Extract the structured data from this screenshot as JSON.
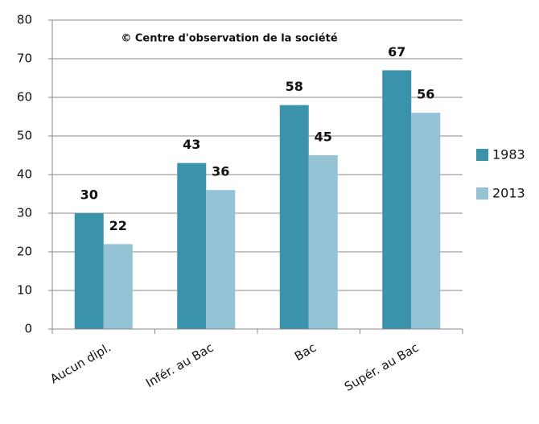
{
  "chart_data": {
    "type": "bar",
    "annotation": "© Centre d'observation de la société",
    "categories": [
      "Aucun dipl.",
      "Infér. au Bac",
      "Bac",
      "Supér. au Bac"
    ],
    "series": [
      {
        "name": "1983",
        "color": "#3a93ab",
        "values": [
          30,
          43,
          58,
          67
        ]
      },
      {
        "name": "2013",
        "color": "#93c3d4",
        "values": [
          22,
          36,
          45,
          56
        ]
      }
    ],
    "ylim": [
      0,
      80
    ],
    "yticks": [
      0,
      10,
      20,
      30,
      40,
      50,
      60,
      70,
      80
    ],
    "grid": true,
    "legend": "right"
  }
}
